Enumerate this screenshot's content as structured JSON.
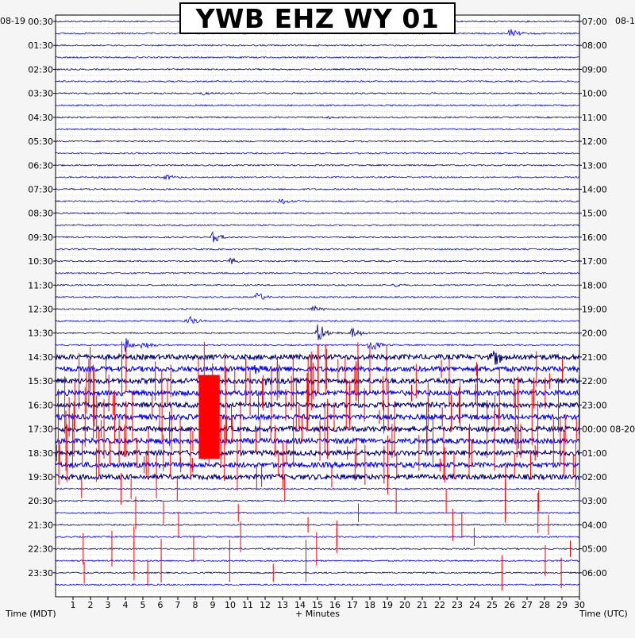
{
  "title": "YWB EHZ WY 01",
  "start_date_left": "08-19",
  "start_date_right": "08-1",
  "xlabel": "+ Minutes",
  "left_axis_label": "Time (MDT)",
  "right_axis_label": "Time (UTC)",
  "colors": {
    "trace_a": "#000080",
    "trace_b": "#0000ff",
    "clip": "#ff0000",
    "background": "#f5f5f5",
    "plot_bg": "#ffffff",
    "grid": "#000000"
  },
  "chart_data": {
    "type": "helicorder",
    "title": "YWB EHZ WY 01",
    "xlabel": "+ Minutes",
    "xlim": [
      0,
      30
    ],
    "x_ticks": [
      1,
      2,
      3,
      4,
      5,
      6,
      7,
      8,
      9,
      10,
      11,
      12,
      13,
      14,
      15,
      16,
      17,
      18,
      19,
      20,
      21,
      22,
      23,
      24,
      25,
      26,
      27,
      28,
      29,
      30
    ],
    "rows_per_label": 2,
    "row_count": 48,
    "left_labels": [
      "00:30",
      "01:30",
      "02:30",
      "03:30",
      "04:30",
      "05:30",
      "06:30",
      "07:30",
      "08:30",
      "09:30",
      "10:30",
      "11:30",
      "12:30",
      "13:30",
      "14:30",
      "15:30",
      "16:30",
      "17:30",
      "18:30",
      "19:30",
      "20:30",
      "21:30",
      "22:30",
      "23:30"
    ],
    "right_labels": [
      "07:00",
      "08:00",
      "09:00",
      "10:00",
      "11:00",
      "12:00",
      "13:00",
      "14:00",
      "15:00",
      "16:00",
      "17:00",
      "18:00",
      "19:00",
      "20:00",
      "21:00",
      "22:00",
      "23:00",
      "00:00 08-20",
      "01:00",
      "02:00",
      "03:00",
      "04:00",
      "05:00",
      "06:00"
    ],
    "trace_colors": [
      "#000080",
      "#0000ff"
    ],
    "events": [
      {
        "row": 1,
        "minute": 26.0,
        "amp": 6
      },
      {
        "row": 6,
        "minute": 8.5,
        "amp": 3
      },
      {
        "row": 8,
        "minute": 15.5,
        "amp": 2
      },
      {
        "row": 13,
        "minute": 6.3,
        "amp": 4
      },
      {
        "row": 15,
        "minute": 12.8,
        "amp": 5
      },
      {
        "row": 18,
        "minute": 9.0,
        "amp": 8
      },
      {
        "row": 20,
        "minute": 10.0,
        "amp": 5
      },
      {
        "row": 22,
        "minute": 19.4,
        "amp": 3
      },
      {
        "row": 23,
        "minute": 11.5,
        "amp": 7
      },
      {
        "row": 24,
        "minute": 14.7,
        "amp": 5
      },
      {
        "row": 25,
        "minute": 7.5,
        "amp": 9
      },
      {
        "row": 26,
        "minute": 15.0,
        "amp": 14
      },
      {
        "row": 26,
        "minute": 17.0,
        "amp": 8
      },
      {
        "row": 27,
        "minute": 4.0,
        "amp": 11
      },
      {
        "row": 27,
        "minute": 18.0,
        "amp": 10
      },
      {
        "row": 27,
        "minute": 5.0,
        "amp": 8
      },
      {
        "row": 28,
        "minute": 25.0,
        "amp": 14
      },
      {
        "row": 29,
        "minute": 11.5,
        "amp": 6
      },
      {
        "row": 30,
        "minute": 12.0,
        "amp": 8
      }
    ],
    "noisy_rows": [
      28,
      29,
      30,
      31,
      32,
      33,
      34,
      35,
      36,
      37,
      38
    ],
    "clip_rows": [
      29,
      30,
      31,
      32,
      33,
      34,
      35,
      36,
      37,
      38,
      39,
      40,
      41,
      42,
      43,
      44,
      45,
      46
    ],
    "saturated_block": {
      "row_start": 30,
      "row_end": 36,
      "minute_start": 8.2,
      "minute_end": 9.4
    }
  }
}
